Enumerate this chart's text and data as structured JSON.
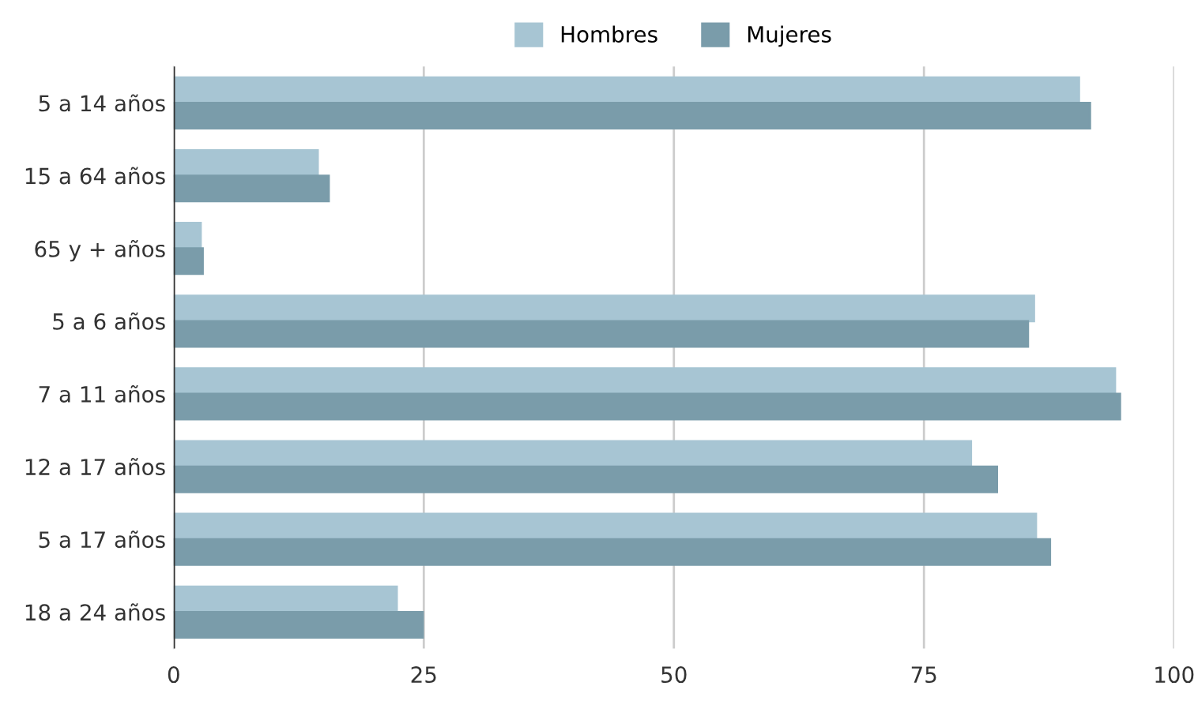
{
  "chart_data": {
    "type": "bar",
    "orientation": "horizontal",
    "categories": [
      "5 a 14 años",
      "15 a 64 años",
      "65 y + años",
      "5 a 6 años",
      "7 a 11 años",
      "12 a 17 años",
      "5 a 17 años",
      "18 a 24 años"
    ],
    "series": [
      {
        "name": "Hombres",
        "color": "#a7c5d3",
        "values": [
          90.5,
          14.4,
          2.7,
          86.0,
          94.1,
          79.7,
          86.2,
          22.3
        ]
      },
      {
        "name": "Mujeres",
        "color": "#7a9caa",
        "values": [
          91.6,
          15.5,
          2.9,
          85.4,
          94.6,
          82.3,
          87.6,
          24.9
        ]
      }
    ],
    "xlim": [
      0,
      100
    ],
    "xticks": [
      0,
      25,
      50,
      75,
      100
    ],
    "grid": "x",
    "legend": "top"
  }
}
